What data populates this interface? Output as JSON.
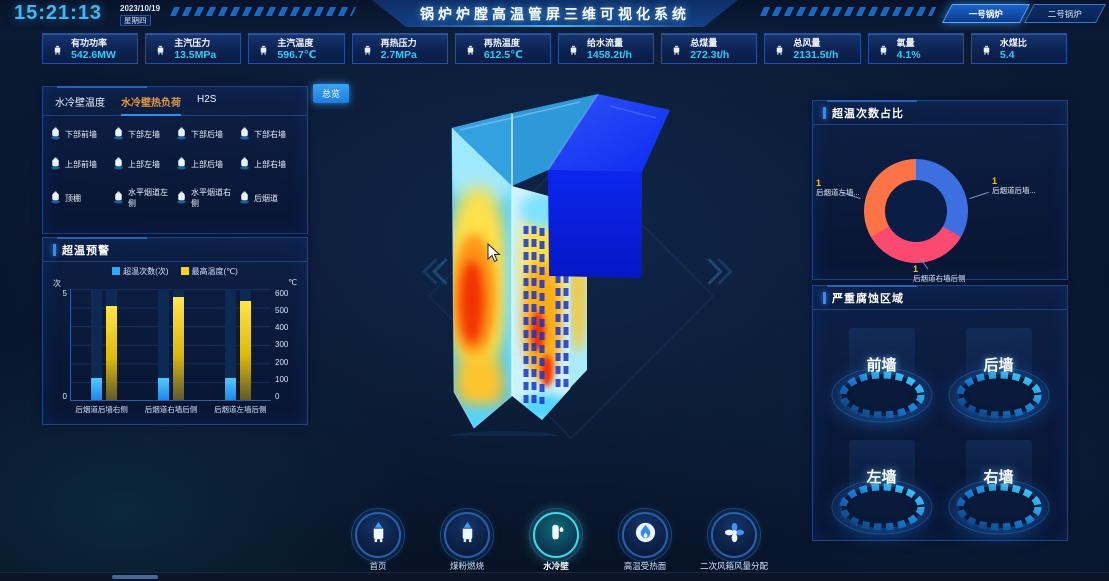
{
  "header": {
    "time": "15:21:13",
    "date": "2023/10/19",
    "weekday": "星期四",
    "title": "锅炉炉膛高温管屏三维可视化系统",
    "boiler_buttons": [
      {
        "label": "一号锅炉",
        "active": true
      },
      {
        "label": "二号锅炉",
        "active": false
      }
    ]
  },
  "kpis": [
    {
      "label": "有功功率",
      "value": "542.6MW"
    },
    {
      "label": "主汽压力",
      "value": "13.5MPa"
    },
    {
      "label": "主汽温度",
      "value": "596.7℃"
    },
    {
      "label": "再热压力",
      "value": "2.7MPa"
    },
    {
      "label": "再热温度",
      "value": "612.5℃"
    },
    {
      "label": "给水流量",
      "value": "1458.2t/h"
    },
    {
      "label": "总煤量",
      "value": "272.3t/h"
    },
    {
      "label": "总风量",
      "value": "2131.5t/h"
    },
    {
      "label": "氧量",
      "value": "4.1%"
    },
    {
      "label": "水煤比",
      "value": "5.4"
    }
  ],
  "wall_panel": {
    "tabs": [
      {
        "label": "水冷壁温度",
        "active": false
      },
      {
        "label": "水冷壁热负荷",
        "active": true
      },
      {
        "label": "H2S",
        "active": false
      }
    ],
    "regions": [
      "下部前墙",
      "下部左墙",
      "下部后墙",
      "下部右墙",
      "上部前墙",
      "上部左墙",
      "上部后墙",
      "上部右墙",
      "顶棚",
      "水平烟道左侧",
      "水平烟道右侧",
      "后烟道"
    ]
  },
  "overview_button": "总览",
  "overtemp_panel": {
    "title": "超温预警",
    "chart_data": {
      "type": "bar",
      "categories": [
        "后烟道后墙右侧",
        "后烟道右墙后侧",
        "后烟道左墙后侧"
      ],
      "series": [
        {
          "name": "超温次数(次)",
          "axis": "left",
          "color": "#2fa8f8",
          "values": [
            1,
            1,
            1
          ]
        },
        {
          "name": "最高温度(℃)",
          "axis": "right",
          "color": "#f7d21e",
          "values": [
            510,
            555,
            535
          ]
        }
      ],
      "left_axis": {
        "unit": "次",
        "min": 0,
        "max": 5
      },
      "right_axis": {
        "unit": "℃",
        "min": 0,
        "max": 600,
        "ticks": [
          600,
          500,
          400,
          300,
          200,
          100,
          0
        ]
      },
      "legend_position": "top",
      "grid": true
    }
  },
  "donut_panel": {
    "title": "超温次数占比",
    "chart_data": {
      "type": "pie",
      "slices": [
        {
          "label": "后烟道后墙...",
          "value": 1,
          "color": "#3e6fe0",
          "pos": "right"
        },
        {
          "label": "后烟道右墙后侧",
          "value": 1,
          "color": "#fa4a6f",
          "pos": "bottom"
        },
        {
          "label": "后烟道左墙...",
          "value": 1,
          "color": "#fc7347",
          "pos": "left"
        }
      ]
    }
  },
  "corrosion_panel": {
    "title": "严重腐蚀区域",
    "zones": [
      "前墙",
      "后墙",
      "左墙",
      "右墙"
    ]
  },
  "nav": {
    "items": [
      {
        "name": "home",
        "label": "首页",
        "icon": "home-boiler-icon",
        "active": false
      },
      {
        "name": "coal-combustion",
        "label": "煤粉燃烧",
        "icon": "coal-combustion-icon",
        "active": false
      },
      {
        "name": "water-wall",
        "label": "水冷壁",
        "icon": "water-wall-icon",
        "active": true
      },
      {
        "name": "high-temp-surface",
        "label": "高温受热面",
        "icon": "high-temp-surface-icon",
        "active": false
      },
      {
        "name": "secondary-air-distribution",
        "label": "二次风箱风量分配",
        "icon": "fan-icon",
        "active": false
      }
    ]
  },
  "colors": {
    "accent_cyan": "#35c8f5",
    "accent_blue": "#2f8ef5",
    "tab_active_orange": "#e39a3e",
    "bar_blue": "#2fa8f8",
    "bar_yellow": "#f7d21e",
    "donut_blue": "#3e6fe0",
    "donut_pink": "#fa4a6f",
    "donut_orange": "#fc7347"
  }
}
